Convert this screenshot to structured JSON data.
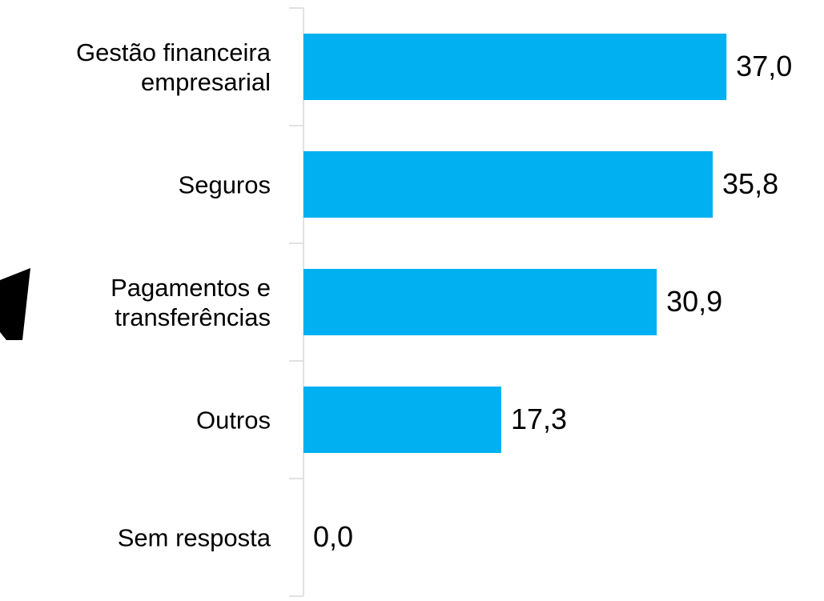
{
  "chart_data": {
    "type": "barh",
    "categories": [
      "Gestão financeira\nempresarial",
      "Seguros",
      "Pagamentos e\ntransferências",
      "Outros",
      "Sem resposta"
    ],
    "values": [
      37.0,
      35.8,
      30.9,
      17.3,
      0.0
    ],
    "value_labels": [
      "37,0",
      "35,8",
      "30,9",
      "17,3",
      "0,0"
    ],
    "color": "#00b0f0",
    "xlim": [
      0,
      40
    ]
  }
}
